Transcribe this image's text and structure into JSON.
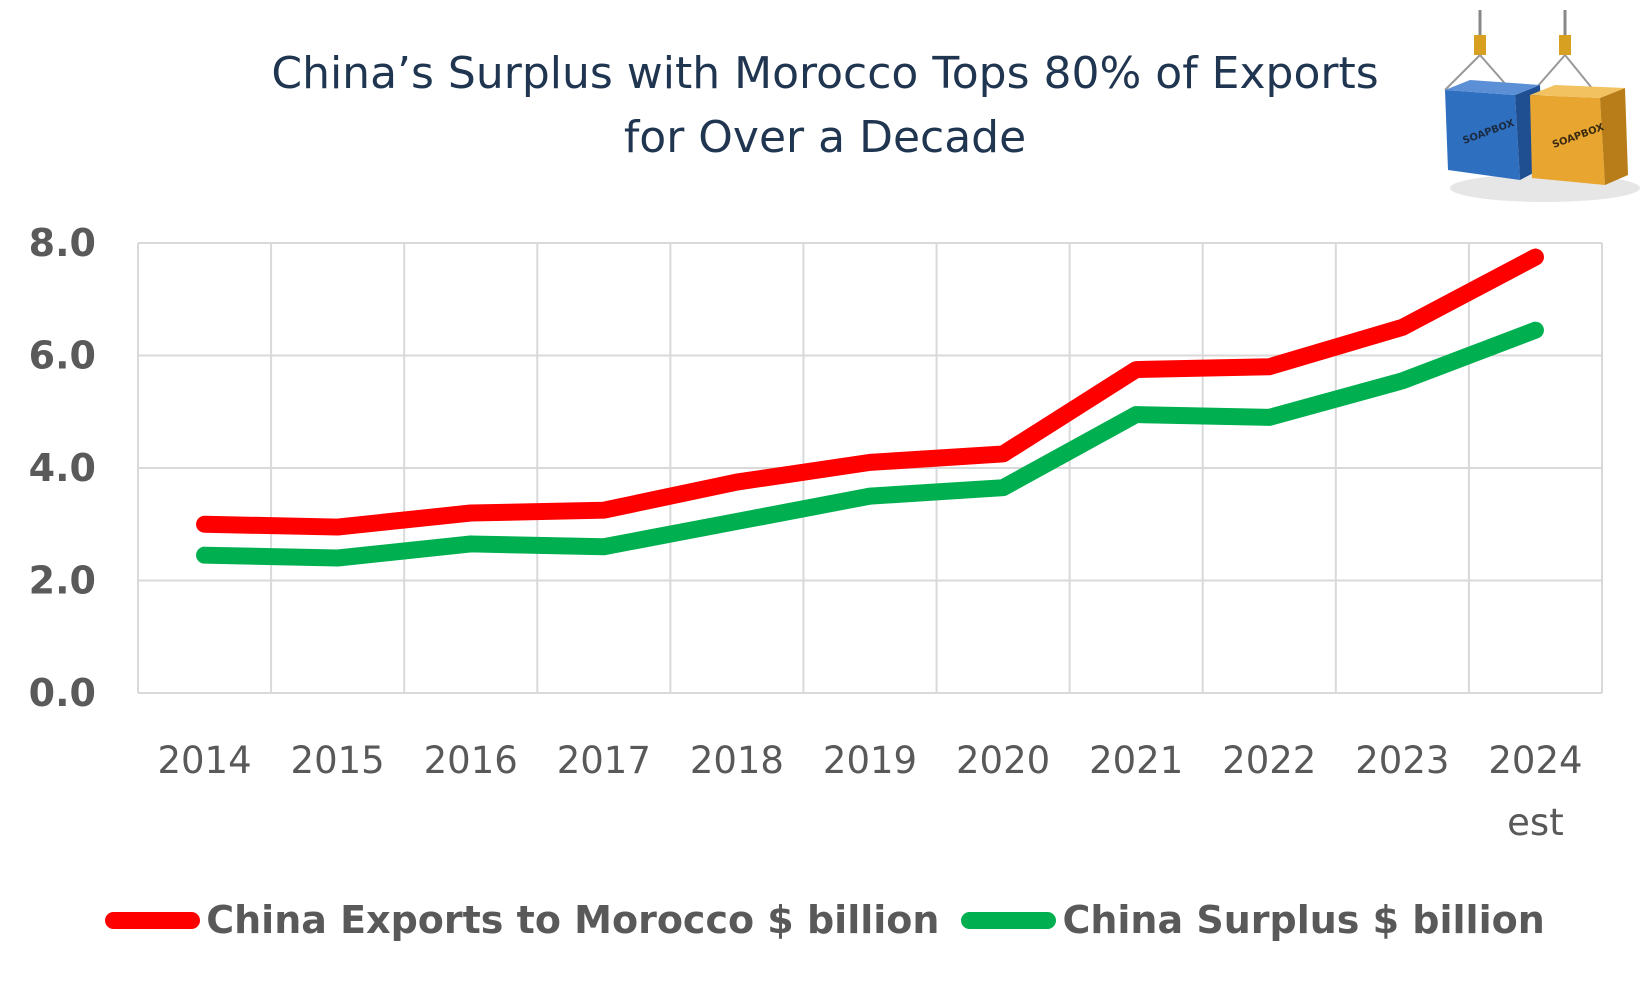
{
  "chart_data": {
    "type": "line",
    "title": "China’s Surplus with Morocco Tops 80% of Exports for Over a Decade",
    "title_lines": [
      "China’s Surplus with Morocco Tops 80% of Exports",
      "for Over a Decade"
    ],
    "categories": [
      "2014",
      "2015",
      "2016",
      "2017",
      "2018",
      "2019",
      "2020",
      "2021",
      "2022",
      "2023",
      "2024 est"
    ],
    "category_labels": [
      [
        "2014"
      ],
      [
        "2015"
      ],
      [
        "2016"
      ],
      [
        "2017"
      ],
      [
        "2018"
      ],
      [
        "2019"
      ],
      [
        "2020"
      ],
      [
        "2021"
      ],
      [
        "2022"
      ],
      [
        "2023"
      ],
      [
        "2024",
        "est"
      ]
    ],
    "series": [
      {
        "name": "China Exports to Morocco $ billion",
        "color": "#ff0000",
        "values": [
          3.0,
          2.95,
          3.2,
          3.25,
          3.75,
          4.1,
          4.25,
          5.75,
          5.8,
          6.5,
          7.75
        ]
      },
      {
        "name": "China Surplus $ billion",
        "color": "#00b050",
        "values": [
          2.45,
          2.4,
          2.65,
          2.6,
          3.05,
          3.5,
          3.65,
          4.95,
          4.9,
          5.55,
          6.45
        ]
      }
    ],
    "ylim": [
      0,
      8
    ],
    "yticks": [
      "0.0",
      "2.0",
      "4.0",
      "6.0",
      "8.0"
    ],
    "ytick_values": [
      0,
      2,
      4,
      6,
      8
    ],
    "grid": true,
    "legend": "bottom",
    "xlabel": "",
    "ylabel": ""
  },
  "logo": {
    "label": "SOAPBOX",
    "colors": [
      "#2f6fbf",
      "#e8a530"
    ]
  }
}
